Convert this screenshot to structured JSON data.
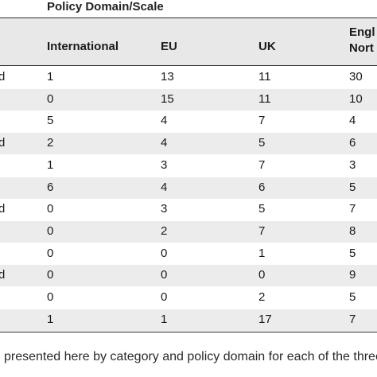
{
  "table": {
    "group_header": "Policy Domain/Scale",
    "columns": [
      {
        "key": "international",
        "label": "International"
      },
      {
        "key": "eu",
        "label": "EU"
      },
      {
        "key": "uk",
        "label": "UK"
      },
      {
        "key": "eng",
        "label_line1": "Engl",
        "label_line2": "Nort"
      }
    ],
    "rows": [
      {
        "stub": "d",
        "values": [
          "1",
          "13",
          "11",
          "30"
        ]
      },
      {
        "stub": "",
        "values": [
          "0",
          "15",
          "11",
          "10"
        ]
      },
      {
        "stub": "",
        "values": [
          "5",
          "4",
          "7",
          "4"
        ]
      },
      {
        "stub": "d",
        "values": [
          "2",
          "4",
          "5",
          "6"
        ]
      },
      {
        "stub": "",
        "values": [
          "1",
          "3",
          "7",
          "3"
        ]
      },
      {
        "stub": "",
        "values": [
          "6",
          "4",
          "6",
          "5"
        ]
      },
      {
        "stub": "d",
        "values": [
          "0",
          "3",
          "5",
          "7"
        ]
      },
      {
        "stub": "",
        "values": [
          "0",
          "2",
          "7",
          "8"
        ]
      },
      {
        "stub": "",
        "values": [
          "0",
          "0",
          "1",
          "5"
        ]
      },
      {
        "stub": "d",
        "values": [
          "0",
          "0",
          "0",
          "9"
        ]
      },
      {
        "stub": "",
        "values": [
          "0",
          "0",
          "2",
          "5"
        ]
      },
      {
        "stub": "",
        "values": [
          "1",
          "1",
          "17",
          "7"
        ]
      }
    ]
  },
  "caption": "presented here by category and policy domain for each of the three"
}
